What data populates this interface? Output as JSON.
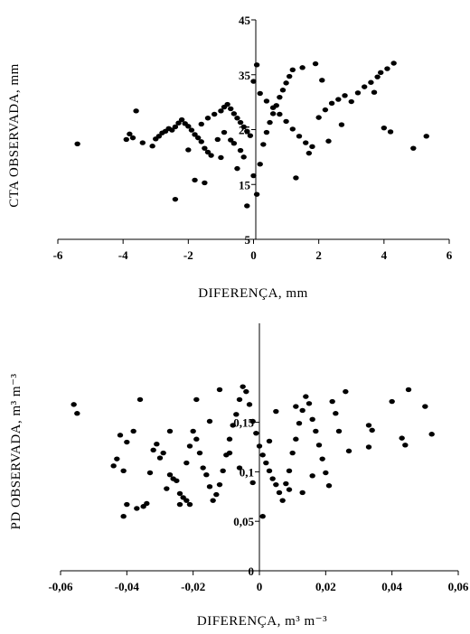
{
  "chart_data": [
    {
      "type": "scatter",
      "xlabel": "DIFERENÇA, mm",
      "ylabel": "CTA OBSERVADA, mm",
      "xlim": [
        -6,
        6
      ],
      "ylim": [
        5,
        45
      ],
      "xticks": [
        -6,
        -4,
        -2,
        0,
        2,
        4,
        6
      ],
      "yticks": [
        5,
        15,
        25,
        35,
        45
      ],
      "grid": false,
      "legend": "none",
      "points": [
        [
          -5.4,
          22.4
        ],
        [
          -3.6,
          28.4
        ],
        [
          -3.8,
          24.2
        ],
        [
          -3.7,
          23.5
        ],
        [
          -3.9,
          23.2
        ],
        [
          -3.4,
          22.6
        ],
        [
          -3.1,
          22.0
        ],
        [
          -3.0,
          23.3
        ],
        [
          -2.9,
          23.8
        ],
        [
          -2.8,
          24.4
        ],
        [
          -2.7,
          24.7
        ],
        [
          -2.6,
          25.2
        ],
        [
          -2.5,
          24.9
        ],
        [
          -2.4,
          25.5
        ],
        [
          -2.3,
          26.2
        ],
        [
          -2.2,
          26.8
        ],
        [
          -2.1,
          26.1
        ],
        [
          -2.0,
          25.6
        ],
        [
          -1.9,
          24.9
        ],
        [
          -1.8,
          24.1
        ],
        [
          -1.7,
          23.5
        ],
        [
          -1.6,
          22.8
        ],
        [
          -1.5,
          21.6
        ],
        [
          -1.4,
          20.9
        ],
        [
          -1.3,
          20.3
        ],
        [
          -1.6,
          26.0
        ],
        [
          -1.4,
          27.1
        ],
        [
          -1.2,
          27.8
        ],
        [
          -1.0,
          28.4
        ],
        [
          -0.9,
          29.1
        ],
        [
          -0.8,
          29.6
        ],
        [
          -0.7,
          28.8
        ],
        [
          -0.6,
          27.9
        ],
        [
          -0.5,
          27.1
        ],
        [
          -0.4,
          26.3
        ],
        [
          -0.3,
          25.5
        ],
        [
          -0.2,
          24.7
        ],
        [
          -0.1,
          23.9
        ],
        [
          -0.6,
          22.5
        ],
        [
          -0.4,
          21.2
        ],
        [
          -2.4,
          12.3
        ],
        [
          -1.8,
          15.8
        ],
        [
          -1.5,
          15.3
        ],
        [
          -0.2,
          11.1
        ],
        [
          -0.5,
          17.9
        ],
        [
          -0.3,
          20.0
        ],
        [
          0.0,
          16.6
        ],
        [
          0.1,
          13.2
        ],
        [
          0.2,
          18.7
        ],
        [
          0.3,
          22.3
        ],
        [
          0.4,
          24.5
        ],
        [
          0.5,
          26.3
        ],
        [
          0.6,
          27.9
        ],
        [
          0.7,
          29.4
        ],
        [
          0.8,
          30.9
        ],
        [
          0.9,
          32.2
        ],
        [
          1.0,
          33.5
        ],
        [
          1.1,
          34.7
        ],
        [
          1.2,
          35.9
        ],
        [
          0.1,
          36.8
        ],
        [
          0.0,
          33.8
        ],
        [
          0.2,
          31.6
        ],
        [
          0.4,
          30.2
        ],
        [
          0.6,
          29.0
        ],
        [
          0.8,
          27.8
        ],
        [
          1.0,
          26.5
        ],
        [
          1.2,
          25.1
        ],
        [
          1.4,
          23.8
        ],
        [
          1.6,
          22.6
        ],
        [
          1.8,
          21.9
        ],
        [
          1.3,
          16.2
        ],
        [
          2.0,
          27.2
        ],
        [
          2.2,
          28.6
        ],
        [
          2.4,
          29.8
        ],
        [
          2.6,
          30.5
        ],
        [
          2.8,
          31.2
        ],
        [
          3.0,
          30.1
        ],
        [
          3.2,
          31.7
        ],
        [
          3.4,
          32.8
        ],
        [
          3.6,
          33.6
        ],
        [
          3.8,
          34.6
        ],
        [
          3.9,
          35.4
        ],
        [
          4.1,
          36.1
        ],
        [
          4.3,
          37.1
        ],
        [
          1.9,
          37.0
        ],
        [
          1.5,
          36.3
        ],
        [
          2.1,
          34.0
        ],
        [
          3.7,
          31.8
        ],
        [
          4.0,
          25.3
        ],
        [
          4.2,
          24.6
        ],
        [
          4.9,
          21.6
        ],
        [
          5.3,
          23.8
        ],
        [
          2.7,
          25.9
        ],
        [
          2.3,
          22.9
        ],
        [
          1.7,
          20.7
        ],
        [
          -0.9,
          24.5
        ],
        [
          -1.1,
          23.2
        ],
        [
          -0.7,
          23.1
        ],
        [
          -2.0,
          21.3
        ],
        [
          -1.0,
          19.9
        ]
      ]
    },
    {
      "type": "scatter",
      "xlabel": "DIFERENÇA, m³ m⁻³",
      "ylabel": "PD OBSERVADA, m³ m⁻³",
      "xlim": [
        -0.06,
        0.06
      ],
      "ylim": [
        0,
        0.25
      ],
      "xticks": [
        "-0,06",
        "-0,04",
        "-0,02",
        "0",
        "0,02",
        "0,04",
        "0,06"
      ],
      "yticks": [
        "0",
        "0,05",
        "0,1",
        "0,15"
      ],
      "grid": false,
      "legend": "none",
      "points": [
        [
          -0.056,
          0.168
        ],
        [
          -0.055,
          0.159
        ],
        [
          -0.044,
          0.106
        ],
        [
          -0.043,
          0.113
        ],
        [
          -0.042,
          0.137
        ],
        [
          -0.041,
          0.101
        ],
        [
          -0.04,
          0.13
        ],
        [
          -0.041,
          0.055
        ],
        [
          -0.04,
          0.067
        ],
        [
          -0.038,
          0.141
        ],
        [
          -0.037,
          0.063
        ],
        [
          -0.036,
          0.173
        ],
        [
          -0.035,
          0.065
        ],
        [
          -0.034,
          0.068
        ],
        [
          -0.032,
          0.122
        ],
        [
          -0.031,
          0.128
        ],
        [
          -0.03,
          0.114
        ],
        [
          -0.029,
          0.119
        ],
        [
          -0.028,
          0.083
        ],
        [
          -0.027,
          0.097
        ],
        [
          -0.026,
          0.093
        ],
        [
          -0.025,
          0.091
        ],
        [
          -0.024,
          0.078
        ],
        [
          -0.023,
          0.074
        ],
        [
          -0.022,
          0.071
        ],
        [
          -0.021,
          0.067
        ],
        [
          -0.022,
          0.109
        ],
        [
          -0.021,
          0.126
        ],
        [
          -0.02,
          0.141
        ],
        [
          -0.019,
          0.133
        ],
        [
          -0.018,
          0.119
        ],
        [
          -0.017,
          0.104
        ],
        [
          -0.016,
          0.097
        ],
        [
          -0.015,
          0.085
        ],
        [
          -0.014,
          0.071
        ],
        [
          -0.013,
          0.077
        ],
        [
          -0.012,
          0.087
        ],
        [
          -0.011,
          0.101
        ],
        [
          -0.01,
          0.117
        ],
        [
          -0.009,
          0.133
        ],
        [
          -0.008,
          0.147
        ],
        [
          -0.007,
          0.158
        ],
        [
          -0.006,
          0.173
        ],
        [
          -0.005,
          0.186
        ],
        [
          -0.004,
          0.181
        ],
        [
          -0.003,
          0.168
        ],
        [
          -0.002,
          0.151
        ],
        [
          -0.001,
          0.139
        ],
        [
          0.0,
          0.126
        ],
        [
          0.001,
          0.117
        ],
        [
          0.002,
          0.109
        ],
        [
          0.003,
          0.101
        ],
        [
          0.004,
          0.093
        ],
        [
          0.005,
          0.087
        ],
        [
          0.006,
          0.079
        ],
        [
          0.007,
          0.071
        ],
        [
          0.008,
          0.088
        ],
        [
          0.009,
          0.101
        ],
        [
          0.01,
          0.119
        ],
        [
          0.011,
          0.133
        ],
        [
          0.012,
          0.149
        ],
        [
          0.013,
          0.162
        ],
        [
          0.014,
          0.176
        ],
        [
          0.015,
          0.169
        ],
        [
          0.016,
          0.153
        ],
        [
          0.017,
          0.141
        ],
        [
          0.018,
          0.127
        ],
        [
          0.019,
          0.113
        ],
        [
          0.02,
          0.099
        ],
        [
          0.021,
          0.086
        ],
        [
          0.022,
          0.171
        ],
        [
          0.023,
          0.159
        ],
        [
          0.024,
          0.141
        ],
        [
          0.026,
          0.181
        ],
        [
          0.001,
          0.055
        ],
        [
          -0.019,
          0.173
        ],
        [
          -0.024,
          0.067
        ],
        [
          -0.012,
          0.183
        ],
        [
          0.003,
          0.131
        ],
        [
          0.009,
          0.082
        ],
        [
          0.033,
          0.147
        ],
        [
          0.034,
          0.142
        ],
        [
          0.033,
          0.125
        ],
        [
          0.04,
          0.171
        ],
        [
          0.043,
          0.134
        ],
        [
          0.044,
          0.127
        ],
        [
          0.045,
          0.183
        ],
        [
          0.05,
          0.166
        ],
        [
          0.052,
          0.138
        ],
        [
          0.027,
          0.121
        ],
        [
          0.016,
          0.096
        ],
        [
          0.013,
          0.079
        ],
        [
          -0.002,
          0.089
        ],
        [
          -0.006,
          0.104
        ],
        [
          -0.009,
          0.119
        ],
        [
          -0.015,
          0.151
        ],
        [
          -0.027,
          0.141
        ],
        [
          -0.033,
          0.099
        ],
        [
          0.005,
          0.161
        ],
        [
          0.011,
          0.166
        ]
      ]
    }
  ]
}
